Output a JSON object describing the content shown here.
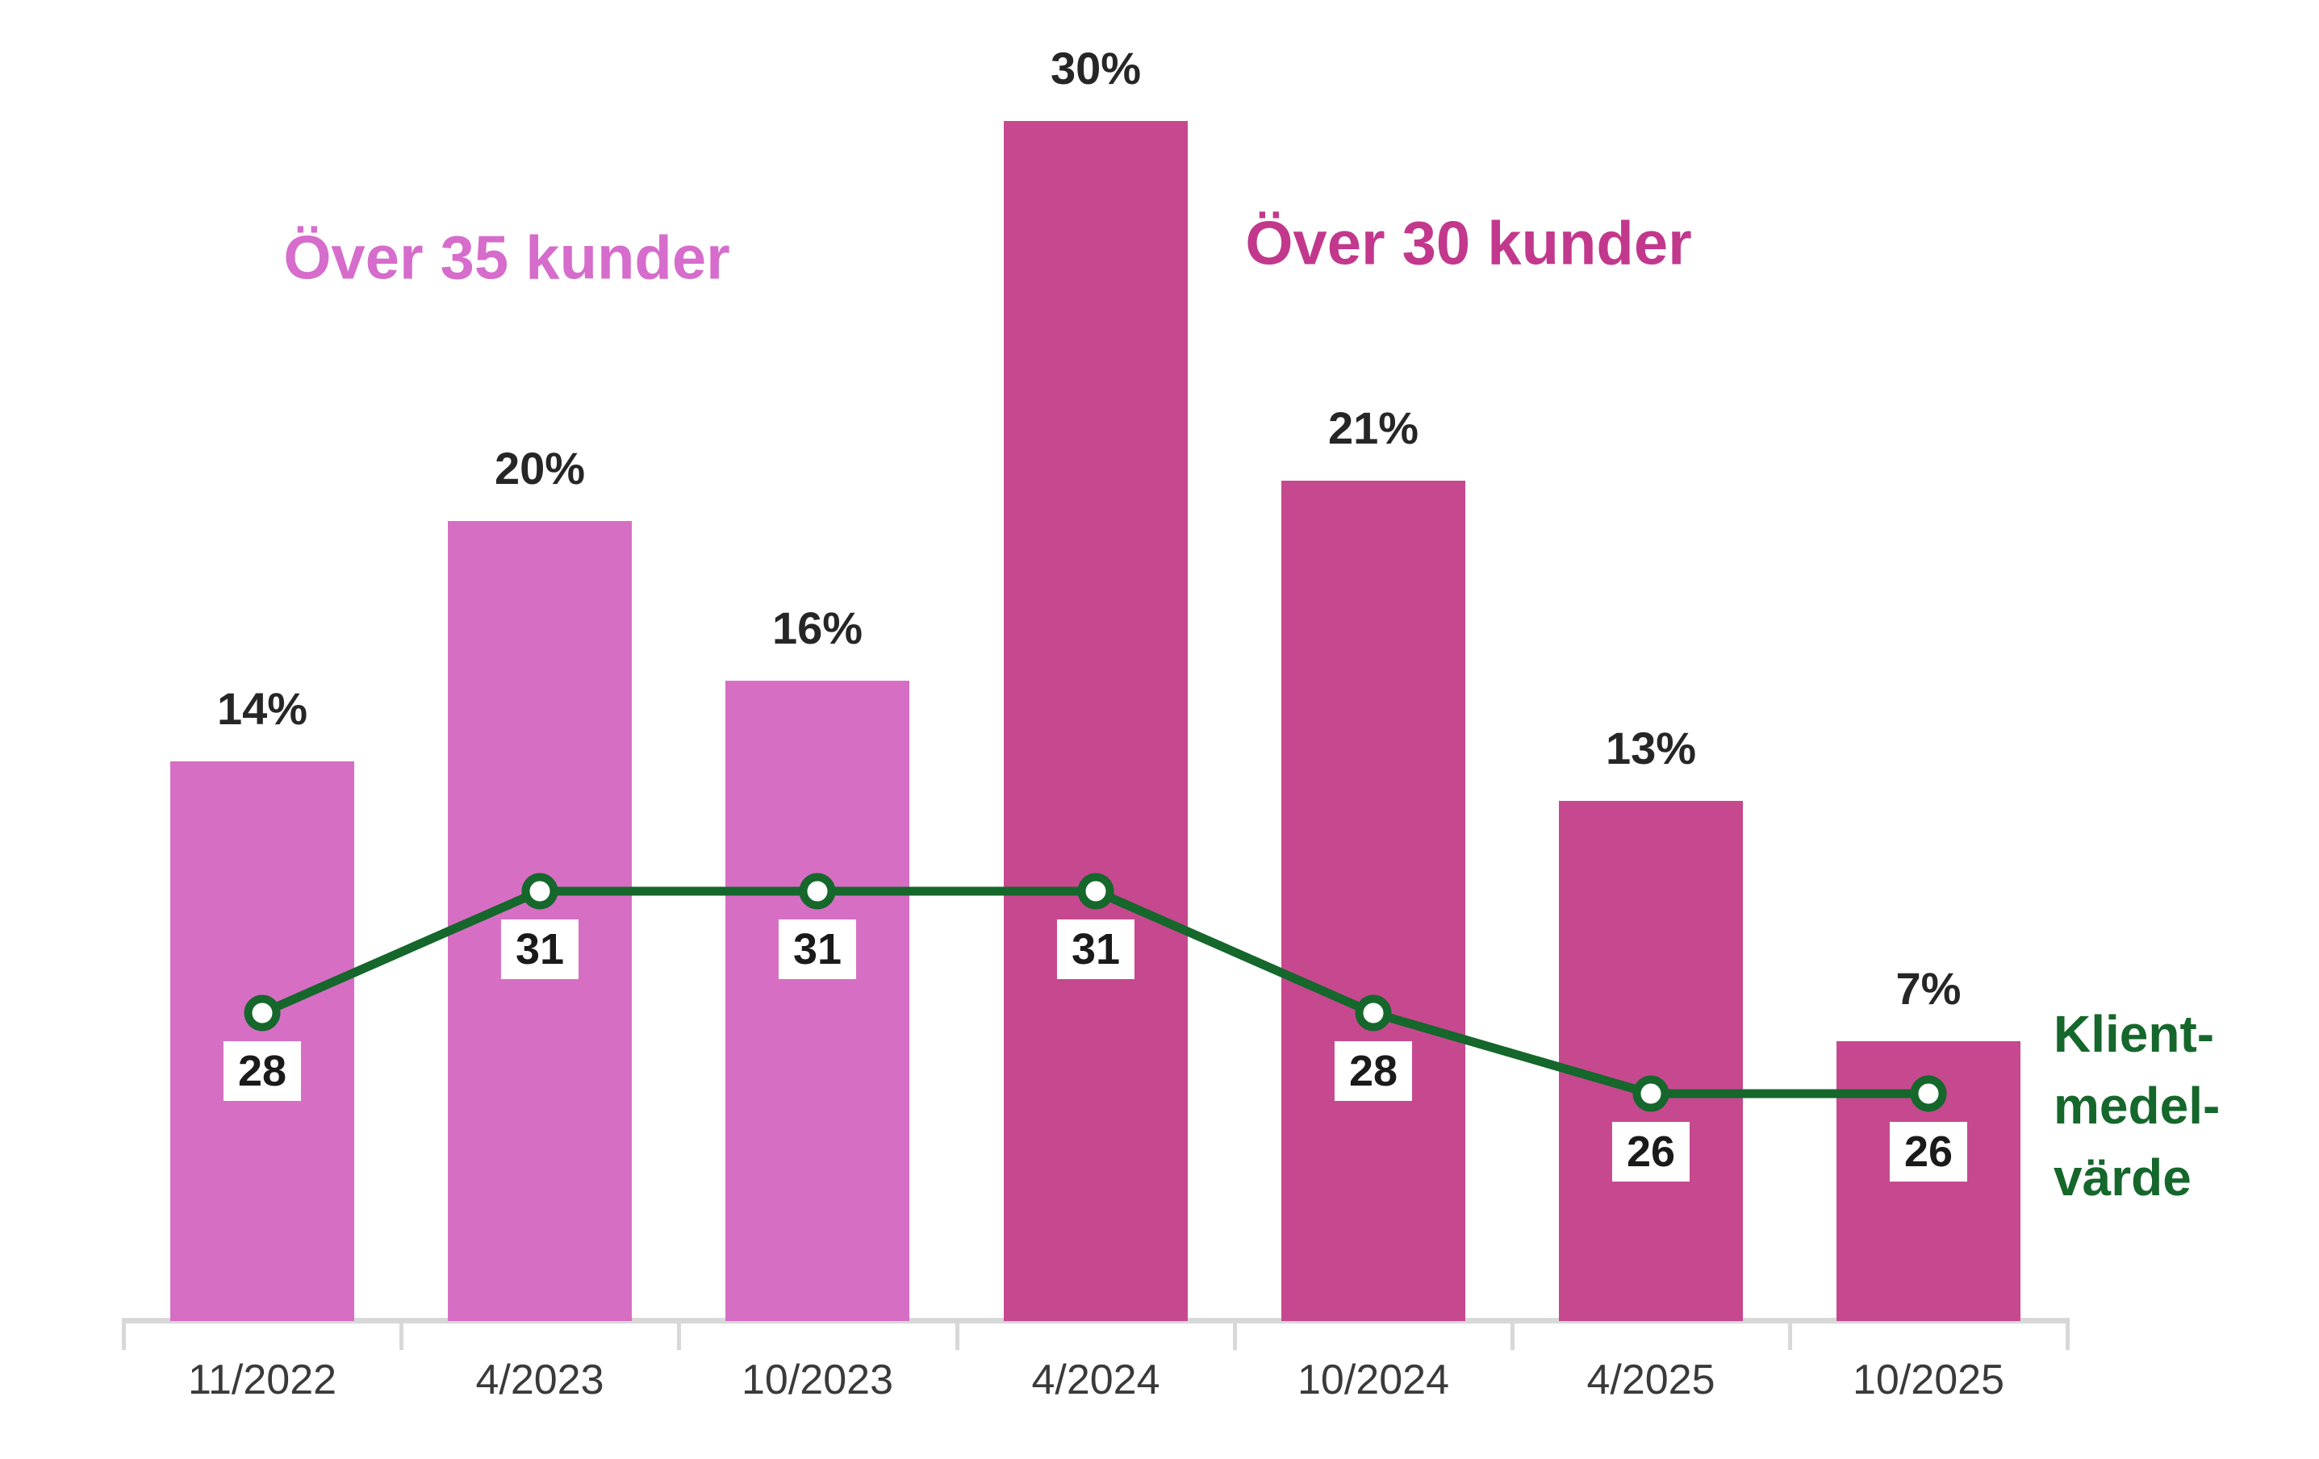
{
  "chart_data": {
    "type": "bar",
    "subtype": "bar-with-line-overlay",
    "title": "",
    "categories": [
      "11/2022",
      "4/2023",
      "10/2023",
      "4/2024",
      "10/2024",
      "4/2025",
      "10/2025"
    ],
    "bar_series": {
      "unit": "%",
      "values": [
        14,
        20,
        16,
        30,
        21,
        13,
        7
      ],
      "labels": [
        "14%",
        "20%",
        "16%",
        "30%",
        "21%",
        "13%",
        "7%"
      ],
      "groups": [
        "over35",
        "over35",
        "over35",
        "over30",
        "over30",
        "over30",
        "over30"
      ]
    },
    "line_series": {
      "name": "Klientmedelvärde",
      "values": [
        28,
        31,
        31,
        31,
        28,
        26,
        26
      ],
      "labels": [
        "28",
        "31",
        "31",
        "31",
        "28",
        "26",
        "26"
      ]
    },
    "annotations": {
      "over35": {
        "text": "Över 35 kunder",
        "color": "#D66CCB"
      },
      "over30": {
        "text": "Över 30 kunder",
        "color": "#C2388C"
      },
      "klientmedelvarde": {
        "text": "Klient-\nmedel-\nvärde",
        "color": "#15672B"
      }
    },
    "colors": {
      "bar_light": "#D66FC3",
      "bar_dark": "#C6498F",
      "line_green": "#15672B",
      "marker_fill": "#FFFFFF",
      "pct_label_text": "#262626",
      "value_label_text": "#1A1A1A",
      "axis_line": "#D8D8D8",
      "axis_text": "#3A3A3A",
      "background": "#FFFFFF"
    },
    "layout_hints": {
      "y_axis_visible": false,
      "gridlines": false,
      "x_ticks_visible": true,
      "bar_value_labels_position": "above bars",
      "line_value_labels_position": "below markers in white boxes"
    }
  }
}
